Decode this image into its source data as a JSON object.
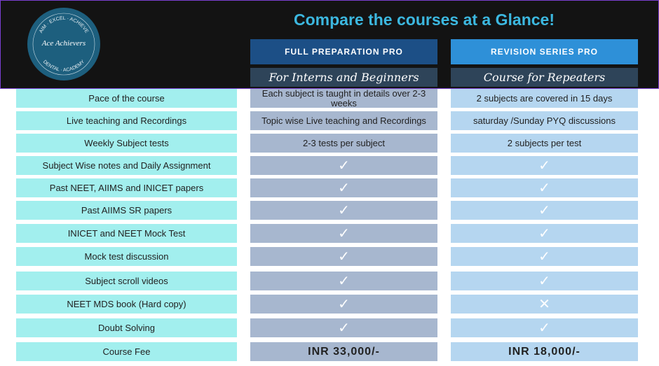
{
  "header": {
    "title": "Compare the courses at a Glance!",
    "logo": {
      "name": "Ace Achievers",
      "ring_top": "AIM · EXCEL · ACHIEVE",
      "ring_bottom": "DENTAL · ACADEMY"
    }
  },
  "columns": [
    {
      "title": "FULL PREPARATION PRO",
      "subtitle": "For Interns and Beginners"
    },
    {
      "title": "REVISION SERIES  PRO",
      "subtitle": "Course for Repeaters"
    }
  ],
  "rows": [
    [
      "Pace of the course",
      "Each subject is taught in details over 2-3 weeks",
      "2 subjects are covered in 15 days"
    ],
    [
      "Live teaching and Recordings",
      "Topic wise Live teaching and Recordings",
      "saturday /Sunday PYQ discussions"
    ],
    [
      "Weekly Subject tests",
      "2-3 tests per subject",
      "2 subjects per test"
    ],
    [
      "Subject Wise notes and  Daily Assignment",
      "✓",
      "✓"
    ],
    [
      "Past NEET, AIIMS and INICET papers",
      "✓",
      "✓"
    ],
    [
      "Past AIIMS SR papers",
      "✓",
      "✓"
    ],
    [
      "INICET and NEET Mock Test",
      "✓",
      "✓"
    ],
    [
      "Mock test discussion",
      "✓",
      "✓"
    ],
    [
      "Subject scroll  videos",
      "✓",
      "✓"
    ],
    [
      "NEET MDS book (Hard copy)",
      "✓",
      "✕"
    ],
    [
      "Doubt Solving",
      "✓",
      "✓"
    ],
    [
      "Course Fee",
      "INR 33,000/-",
      "INR 18,000/-"
    ]
  ]
}
